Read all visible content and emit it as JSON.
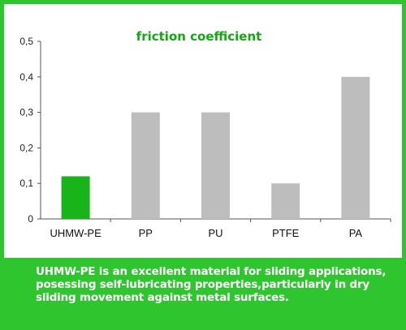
{
  "chart_data": {
    "type": "bar",
    "title": "friction coefficient",
    "categories": [
      "UHMW-PE",
      "PP",
      "PU",
      "PTFE",
      "PA"
    ],
    "values": [
      0.12,
      0.3,
      0.3,
      0.1,
      0.4
    ],
    "yticks": [
      "0",
      "0,1",
      "0,2",
      "0,3",
      "0,4",
      "0,5"
    ],
    "ylim": [
      0,
      0.5
    ],
    "grid": false,
    "colors": {
      "highlight": "#19b419",
      "default": "#bdbdbd"
    },
    "highlight_index": 0
  },
  "caption": "UHMW-PE is an excellent material for sliding applications, posessing self-lubricating properties,particularly in dry sliding movement against metal surfaces."
}
